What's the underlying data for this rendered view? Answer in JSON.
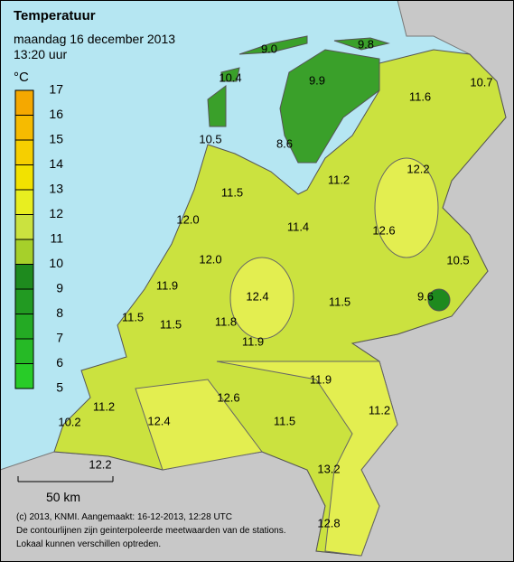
{
  "header": {
    "title": "Temperatuur",
    "date": "maandag 16 december 2013",
    "time": "13:20 uur"
  },
  "legend": {
    "unit": "°C",
    "ticks": [
      17,
      16,
      15,
      14,
      13,
      12,
      11,
      10,
      9,
      8,
      7,
      6,
      5
    ]
  },
  "stations": [
    "9.0",
    "9.8",
    "10.4",
    "9.9",
    "11.6",
    "10.7",
    "10.5",
    "8.6",
    "12.2",
    "11.2",
    "11.5",
    "12.0",
    "11.4",
    "12.6",
    "12.0",
    "10.5",
    "11.9",
    "12.4",
    "11.5",
    "9.6",
    "11.5",
    "11.5",
    "11.8",
    "11.9",
    "11.9",
    "12.6",
    "11.2",
    "11.2",
    "11.5",
    "10.2",
    "12.4",
    "13.2",
    "12.2",
    "12.8"
  ],
  "scale": "50 km",
  "footer": [
    "(c) 2013, KNMI. Aangemaakt: 16-12-2013, 12:28 UTC",
    "De contourlijnen zijn geinterpoleerde meetwaarden van de stations.",
    "Lokaal kunnen verschillen optreden."
  ]
}
